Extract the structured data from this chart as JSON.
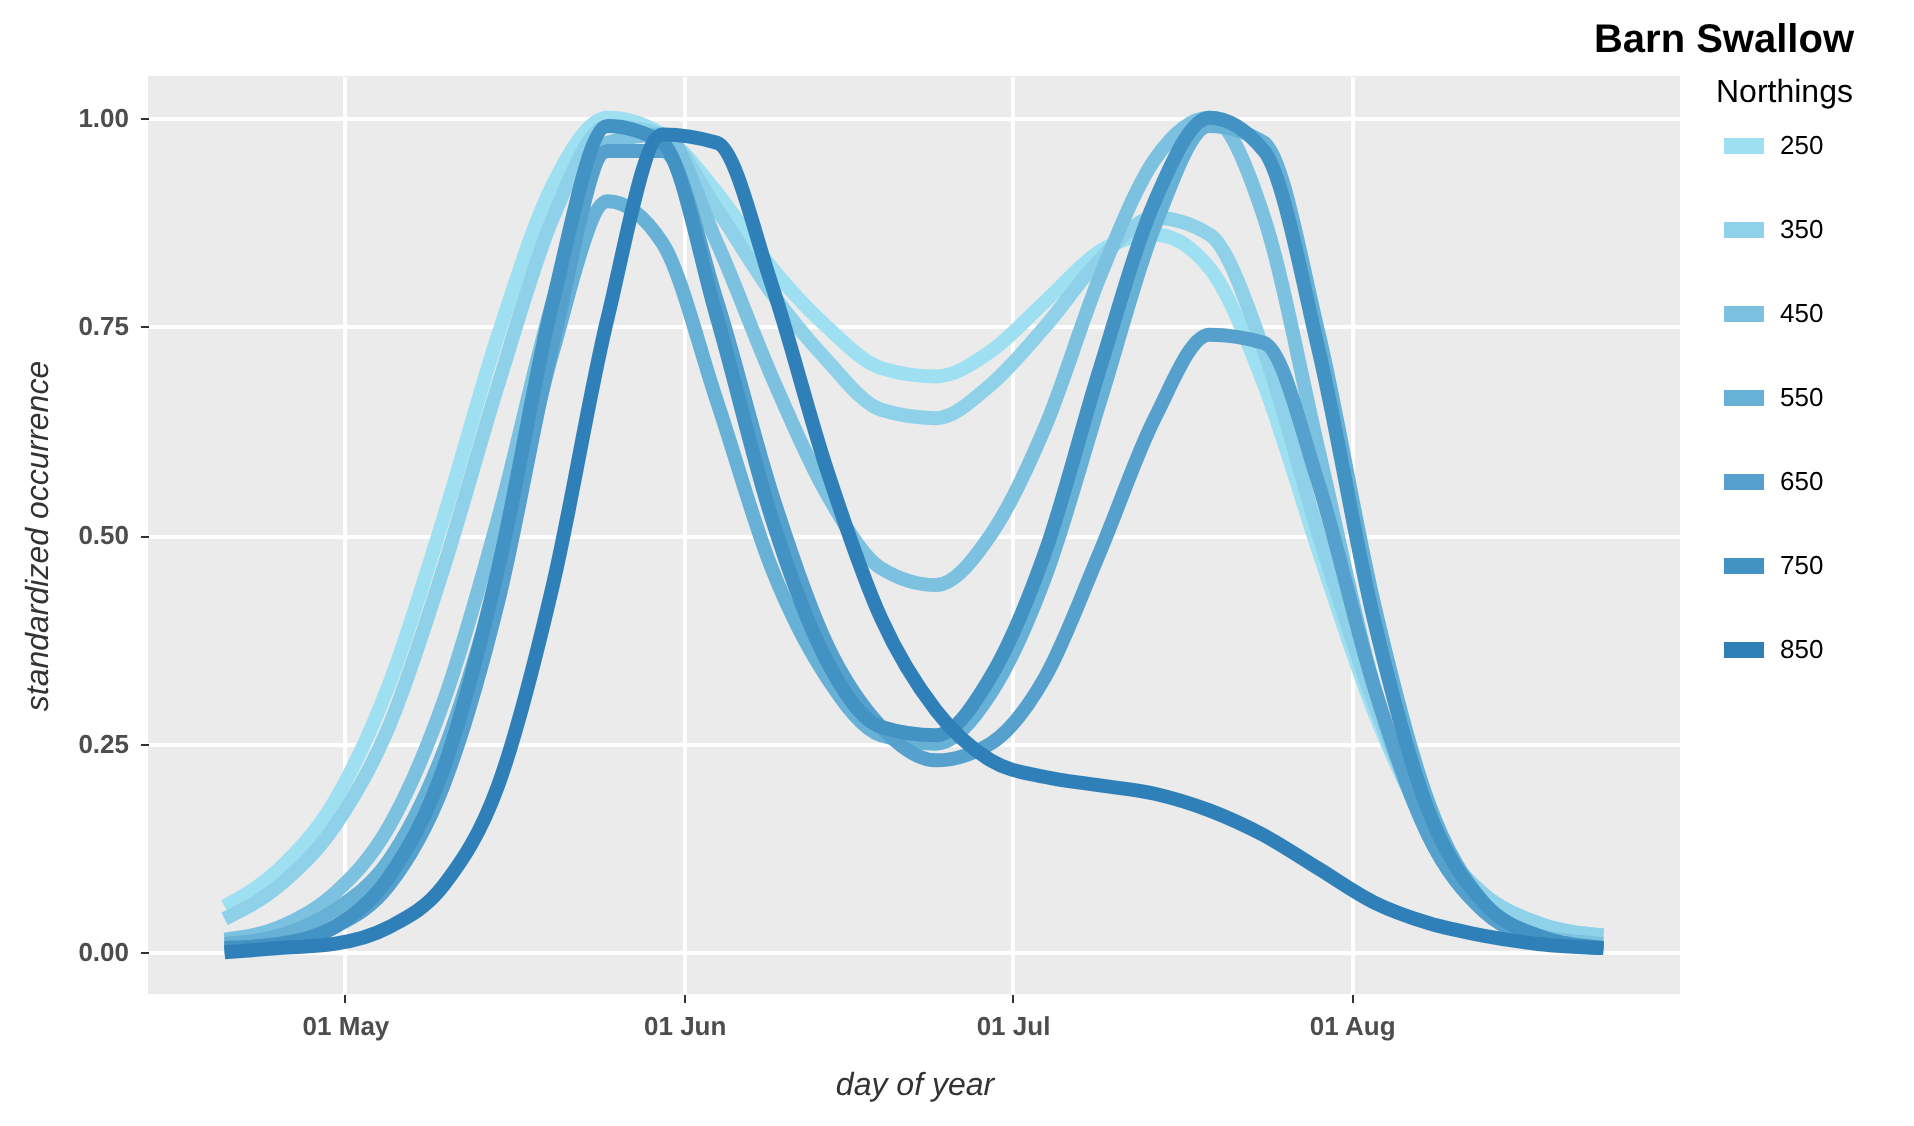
{
  "chart_data": {
    "type": "line",
    "title": "Barn Swallow",
    "xlabel": "day of year",
    "ylabel": "standardized occurrence",
    "legend_title": "Northings",
    "legend": "right",
    "grid": true,
    "line_style": "solid",
    "marker": "none",
    "x": [
      "--04-20",
      "--04-25",
      "--04-30",
      "--05-05",
      "--05-10",
      "--05-15",
      "--05-20",
      "--05-25",
      "--05-30",
      "--06-04",
      "--06-09",
      "--06-14",
      "--06-19",
      "--06-24",
      "--06-29",
      "--07-04",
      "--07-09",
      "--07-14",
      "--07-19",
      "--07-24",
      "--07-29",
      "--08-03",
      "--08-08",
      "--08-13",
      "--08-18",
      "--08-24"
    ],
    "xlim": [
      "--04-13",
      "--08-31"
    ],
    "xticks": [
      {
        "value": "--05-01",
        "label": "01 May"
      },
      {
        "value": "--06-01",
        "label": "01 Jun"
      },
      {
        "value": "--07-01",
        "label": "01 Jul"
      },
      {
        "value": "--08-01",
        "label": "01 Aug"
      }
    ],
    "ylim": [
      -0.05,
      1.05
    ],
    "yticks": [
      {
        "value": 0,
        "label": "0.00"
      },
      {
        "value": 0.25,
        "label": "0.25"
      },
      {
        "value": 0.5,
        "label": "0.50"
      },
      {
        "value": 0.75,
        "label": "0.75"
      },
      {
        "value": 1,
        "label": "1.00"
      }
    ],
    "series": [
      {
        "name": "250",
        "color": "#9ee0f2",
        "values": [
          0.055,
          0.1,
          0.18,
          0.32,
          0.52,
          0.74,
          0.92,
          1.0,
          0.98,
          0.91,
          0.82,
          0.75,
          0.7,
          0.69,
          0.72,
          0.78,
          0.84,
          0.86,
          0.82,
          0.68,
          0.48,
          0.29,
          0.15,
          0.07,
          0.035,
          0.02
        ]
      },
      {
        "name": "350",
        "color": "#8fd1e8",
        "values": [
          0.04,
          0.08,
          0.15,
          0.27,
          0.46,
          0.68,
          0.88,
          0.99,
          0.98,
          0.89,
          0.79,
          0.71,
          0.65,
          0.64,
          0.68,
          0.75,
          0.83,
          0.88,
          0.86,
          0.72,
          0.5,
          0.3,
          0.15,
          0.07,
          0.035,
          0.02
        ]
      },
      {
        "name": "450",
        "color": "#7cc1e0",
        "values": [
          0.015,
          0.03,
          0.07,
          0.15,
          0.3,
          0.52,
          0.78,
          0.97,
          0.98,
          0.85,
          0.69,
          0.55,
          0.46,
          0.44,
          0.5,
          0.63,
          0.81,
          0.95,
          1.0,
          0.88,
          0.6,
          0.32,
          0.14,
          0.05,
          0.02,
          0.01
        ]
      },
      {
        "name": "550",
        "color": "#67b0d6",
        "values": [
          0.01,
          0.02,
          0.05,
          0.11,
          0.24,
          0.45,
          0.72,
          0.9,
          0.85,
          0.66,
          0.46,
          0.33,
          0.26,
          0.25,
          0.31,
          0.45,
          0.66,
          0.87,
          0.99,
          0.97,
          0.74,
          0.42,
          0.18,
          0.06,
          0.02,
          0.005
        ]
      },
      {
        "name": "650",
        "color": "#55a0cc",
        "values": [
          0.005,
          0.01,
          0.03,
          0.08,
          0.2,
          0.42,
          0.73,
          0.96,
          0.96,
          0.78,
          0.55,
          0.37,
          0.27,
          0.23,
          0.25,
          0.33,
          0.48,
          0.64,
          0.74,
          0.73,
          0.56,
          0.32,
          0.14,
          0.05,
          0.015,
          0.005
        ]
      },
      {
        "name": "750",
        "color": "#4292c4",
        "values": [
          0.005,
          0.01,
          0.03,
          0.09,
          0.22,
          0.46,
          0.78,
          0.99,
          0.97,
          0.76,
          0.52,
          0.35,
          0.27,
          0.26,
          0.33,
          0.48,
          0.7,
          0.9,
          1.0,
          0.96,
          0.72,
          0.4,
          0.17,
          0.06,
          0.02,
          0.005
        ]
      },
      {
        "name": "850",
        "color": "#2f80b8",
        "values": [
          0.0,
          0.005,
          0.01,
          0.03,
          0.08,
          0.2,
          0.44,
          0.76,
          0.98,
          0.97,
          0.8,
          0.58,
          0.4,
          0.29,
          0.23,
          0.21,
          0.2,
          0.19,
          0.17,
          0.14,
          0.1,
          0.06,
          0.035,
          0.02,
          0.01,
          0.005
        ]
      }
    ]
  }
}
